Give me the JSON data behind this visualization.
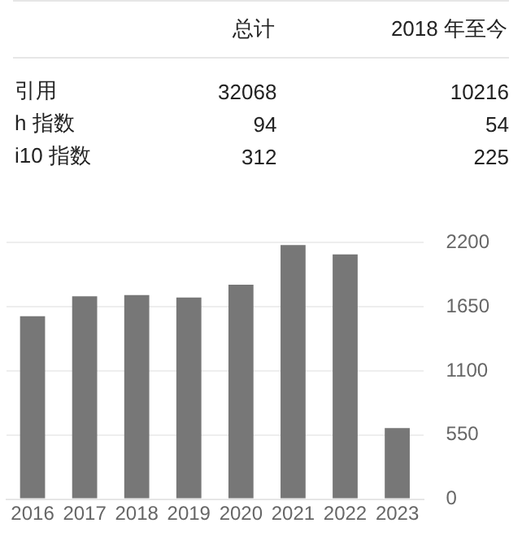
{
  "chart_data": [
    {
      "type": "other",
      "categories": [
        "总计",
        "2018 年至今"
      ],
      "y_categories": [
        "引用",
        "h 指数",
        "i10 指数"
      ],
      "cell_labels": [
        [
          "32068",
          "10216"
        ],
        [
          "94",
          "54"
        ],
        [
          "312",
          "225"
        ]
      ]
    },
    {
      "type": "bar",
      "categories": [
        "2016",
        "2017",
        "2018",
        "2019",
        "2020",
        "2021",
        "2022",
        "2023"
      ],
      "values": [
        1570,
        1740,
        1750,
        1730,
        1840,
        2180,
        2100,
        610
      ],
      "color": "#777777",
      "ylim": [
        0,
        2200
      ],
      "yticks": [
        0,
        550,
        1100,
        1650,
        2200
      ],
      "grid": "y",
      "legend": false
    }
  ]
}
